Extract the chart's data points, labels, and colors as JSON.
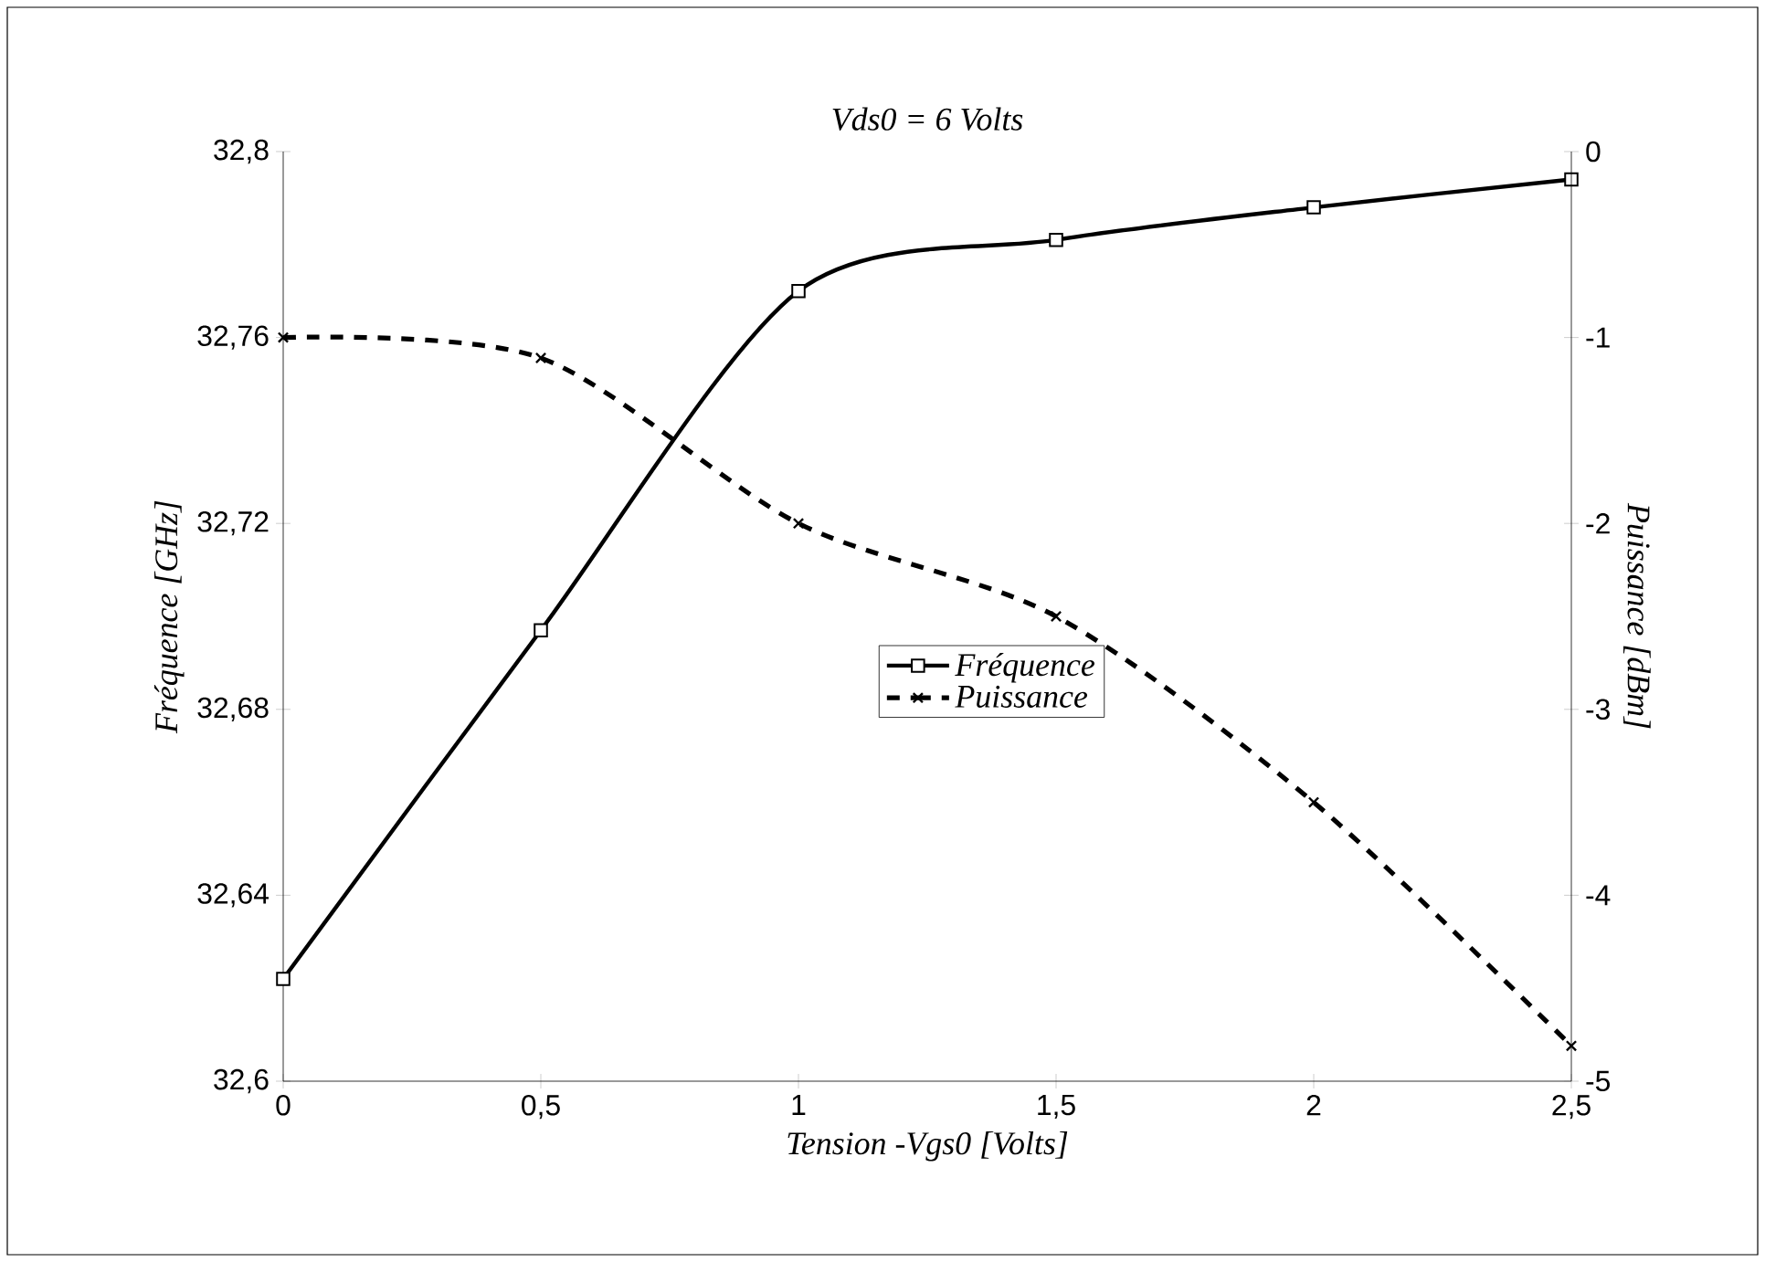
{
  "chart_data": {
    "type": "line",
    "title": "*Vds0 = 6 Volts*",
    "xlabel": "Tension -Vgs0 [Volts]",
    "ylabel": "Fréquence [GHz]",
    "y2label": "Puissance [dBm]",
    "x": [
      0,
      0.5,
      1,
      1.5,
      2,
      2.5
    ],
    "series": [
      {
        "name": "Fréquence",
        "color": "#000000",
        "marker": "square",
        "line_style": "solid",
        "values": [
          32.622,
          32.697,
          32.77,
          32.781,
          32.788,
          32.794
        ]
      },
      {
        "name": "Puissance",
        "color": "#000000",
        "marker": "cross",
        "line_style": "dashed",
        "axis": "y2",
        "values": [
          -1.0,
          -1.11,
          -2.0,
          -2.5,
          -3.5,
          -4.81
        ]
      }
    ],
    "xlim": [
      0,
      2.5
    ],
    "xticks": [
      0,
      {
        "value": 0.5,
        "label": "0,5"
      },
      1,
      {
        "value": 1.5,
        "label": "1,5"
      },
      2,
      {
        "value": 2.5,
        "label": "2,5"
      }
    ],
    "ylim": [
      32.6,
      32.8
    ],
    "yticks": [
      {
        "value": 32.6,
        "label": "32,6"
      },
      {
        "value": 32.64,
        "label": "32,64"
      },
      {
        "value": 32.68,
        "label": "32,68"
      },
      {
        "value": 32.72,
        "label": "32,72"
      },
      {
        "value": 32.76,
        "label": "32,76"
      },
      {
        "value": 32.8,
        "label": "32,8"
      }
    ],
    "y2lim": [
      -5,
      0
    ],
    "y2ticks": [
      -5,
      -4,
      -3,
      -2,
      -1,
      0
    ],
    "grid": false,
    "legend": "center"
  }
}
